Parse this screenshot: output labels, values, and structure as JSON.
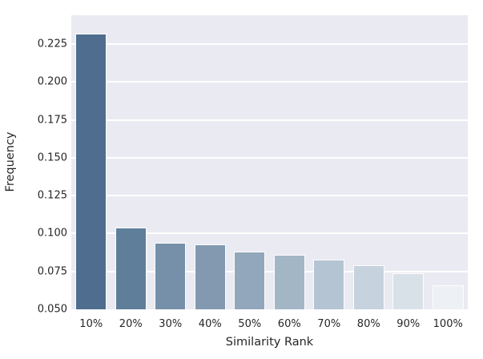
{
  "figure": {
    "background": "#ffffff",
    "plot_background": "#eaeaf2",
    "grid_color": "#ffffff",
    "text_color": "#262626",
    "bar_edge_color": "#fcfdfe"
  },
  "chart_data": {
    "type": "bar",
    "title": "",
    "xlabel": "Similarity Rank",
    "ylabel": "Frequency",
    "categories": [
      "10%",
      "20%",
      "30%",
      "40%",
      "50%",
      "60%",
      "70%",
      "80%",
      "90%",
      "100%"
    ],
    "values": [
      0.232,
      0.104,
      0.094,
      0.093,
      0.088,
      0.086,
      0.083,
      0.079,
      0.074,
      0.066
    ],
    "bar_colors": [
      "#4f6d8e",
      "#5f7e99",
      "#7590a8",
      "#8299b0",
      "#92a7bb",
      "#a3b6c6",
      "#b4c4d2",
      "#c6d2dd",
      "#d9e1e8",
      "#edf1f5"
    ],
    "ylim": [
      0.05,
      0.244
    ],
    "yticks": [
      {
        "value": 0.05,
        "label": "0.050"
      },
      {
        "value": 0.075,
        "label": "0.075"
      },
      {
        "value": 0.1,
        "label": "0.100"
      },
      {
        "value": 0.125,
        "label": "0.125"
      },
      {
        "value": 0.15,
        "label": "0.150"
      },
      {
        "value": 0.175,
        "label": "0.175"
      },
      {
        "value": 0.2,
        "label": "0.200"
      },
      {
        "value": 0.225,
        "label": "0.225"
      }
    ],
    "grid": true,
    "legend_position": "none"
  }
}
